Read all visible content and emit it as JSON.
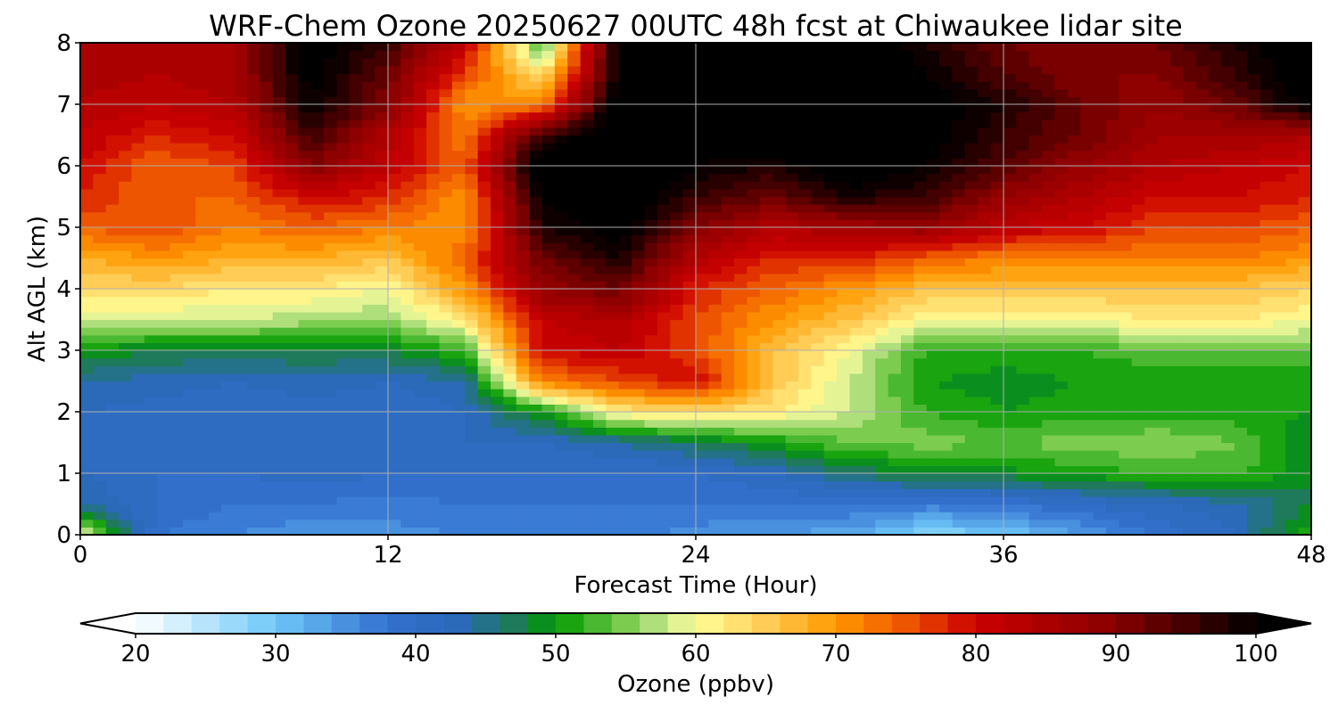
{
  "chart_data": {
    "type": "heatmap",
    "title": "WRF-Chem Ozone  20250627 00UTC 48h fcst at Chiwaukee lidar site",
    "xlabel": "Forecast Time (Hour)",
    "ylabel": "Alt AGL (km)",
    "xlim": [
      0,
      48
    ],
    "ylim": [
      0,
      8
    ],
    "xticks": [
      "0",
      "12",
      "24",
      "36",
      "48"
    ],
    "yticks": [
      "0",
      "1",
      "2",
      "3",
      "4",
      "5",
      "6",
      "7",
      "8"
    ],
    "grid": true,
    "x": [
      0,
      3,
      6,
      9,
      12,
      15,
      18,
      21,
      24,
      27,
      30,
      33,
      36,
      39,
      42,
      45,
      48
    ],
    "y": [
      0,
      0.5,
      1,
      1.5,
      2,
      2.5,
      3,
      3.5,
      4,
      4.5,
      5,
      5.5,
      6,
      6.5,
      7,
      7.5,
      8
    ],
    "z": [
      [
        60,
        38,
        36,
        34,
        35,
        36,
        37,
        37,
        35,
        34,
        33,
        28,
        30,
        34,
        38,
        42,
        52
      ],
      [
        44,
        40,
        38,
        38,
        37,
        38,
        38,
        38,
        38,
        38,
        38,
        37,
        38,
        40,
        42,
        43,
        48
      ],
      [
        42,
        40,
        40,
        41,
        40,
        40,
        40,
        40,
        40,
        42,
        46,
        49,
        49,
        51,
        52,
        53,
        48
      ],
      [
        42,
        41,
        40,
        41,
        40,
        42,
        42,
        44,
        47,
        50,
        54,
        55,
        54,
        55,
        56,
        54,
        48
      ],
      [
        42,
        41,
        40,
        41,
        40,
        42,
        50,
        62,
        64,
        62,
        58,
        52,
        50,
        51,
        51,
        51,
        50
      ],
      [
        44,
        43,
        42,
        43,
        42,
        44,
        72,
        76,
        80,
        66,
        58,
        50,
        49,
        50,
        50,
        50,
        50
      ],
      [
        50,
        48,
        48,
        48,
        48,
        52,
        80,
        82,
        76,
        66,
        60,
        52,
        51,
        52,
        54,
        54,
        54
      ],
      [
        58,
        58,
        58,
        57,
        56,
        62,
        82,
        84,
        76,
        70,
        66,
        60,
        60,
        60,
        62,
        62,
        60
      ],
      [
        64,
        64,
        62,
        62,
        60,
        70,
        88,
        92,
        78,
        74,
        70,
        66,
        66,
        66,
        66,
        66,
        64
      ],
      [
        68,
        70,
        68,
        68,
        66,
        74,
        92,
        98,
        84,
        78,
        78,
        74,
        72,
        72,
        72,
        72,
        70
      ],
      [
        74,
        76,
        72,
        74,
        72,
        70,
        98,
        102,
        90,
        84,
        86,
        88,
        82,
        80,
        76,
        76,
        74
      ],
      [
        78,
        74,
        74,
        80,
        78,
        70,
        100,
        104,
        96,
        92,
        98,
        96,
        88,
        84,
        80,
        80,
        78
      ],
      [
        80,
        74,
        76,
        90,
        82,
        74,
        104,
        106,
        100,
        98,
        104,
        100,
        94,
        88,
        84,
        82,
        80
      ],
      [
        82,
        78,
        80,
        96,
        84,
        72,
        96,
        104,
        102,
        104,
        104,
        102,
        96,
        92,
        86,
        86,
        84
      ],
      [
        84,
        82,
        84,
        100,
        90,
        70,
        72,
        104,
        104,
        104,
        104,
        102,
        98,
        92,
        88,
        92,
        102
      ],
      [
        85,
        84,
        86,
        102,
        92,
        76,
        62,
        100,
        104,
        104,
        104,
        100,
        94,
        90,
        90,
        96,
        104
      ],
      [
        86,
        85,
        86,
        102,
        96,
        82,
        52,
        102,
        104,
        104,
        104,
        98,
        92,
        90,
        92,
        98,
        104
      ]
    ],
    "colorbar": {
      "label": "Ozone  (ppbv)",
      "min": 20,
      "max": 100,
      "step": 2,
      "extend": "both",
      "ticks": [
        "20",
        "30",
        "40",
        "50",
        "60",
        "70",
        "80",
        "90",
        "100"
      ],
      "colors": [
        {
          "v": 20,
          "c": "#ffffff"
        },
        {
          "v": 30,
          "c": "#6ec8f8"
        },
        {
          "v": 38,
          "c": "#3370d0"
        },
        {
          "v": 43,
          "c": "#2a6ab8"
        },
        {
          "v": 47,
          "c": "#1e7a5a"
        },
        {
          "v": 50,
          "c": "#009a00"
        },
        {
          "v": 55,
          "c": "#7ccc50"
        },
        {
          "v": 58,
          "c": "#c8e890"
        },
        {
          "v": 60,
          "c": "#ffff99"
        },
        {
          "v": 65,
          "c": "#ffcc55"
        },
        {
          "v": 70,
          "c": "#ff9900"
        },
        {
          "v": 75,
          "c": "#ee5500"
        },
        {
          "v": 80,
          "c": "#cc0000"
        },
        {
          "v": 90,
          "c": "#880000"
        },
        {
          "v": 100,
          "c": "#000000"
        }
      ]
    }
  }
}
